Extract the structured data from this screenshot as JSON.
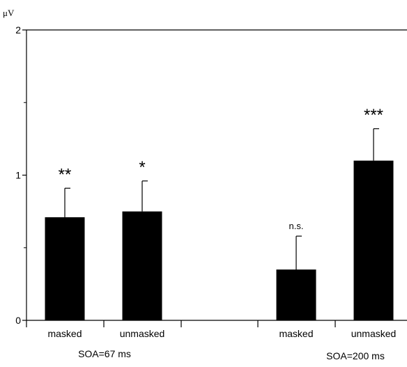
{
  "chart_data": {
    "type": "bar",
    "ylabel": "μV",
    "ylim": [
      0,
      2
    ],
    "yticks": [
      0,
      1,
      2
    ],
    "grid": false,
    "legend": "none",
    "error_bars": "upper",
    "bar_color": "#000000",
    "groups": [
      {
        "label": "SOA=67 ms",
        "bars": [
          {
            "category": "masked",
            "value": 0.71,
            "error": 0.2,
            "significance": "**"
          },
          {
            "category": "unmasked",
            "value": 0.75,
            "error": 0.21,
            "significance": "*"
          }
        ]
      },
      {
        "label": "SOA=200 ms",
        "bars": [
          {
            "category": "masked",
            "value": 0.35,
            "error": 0.23,
            "significance": "n.s."
          },
          {
            "category": "unmasked",
            "value": 1.1,
            "error": 0.22,
            "significance": "***"
          }
        ]
      }
    ]
  }
}
